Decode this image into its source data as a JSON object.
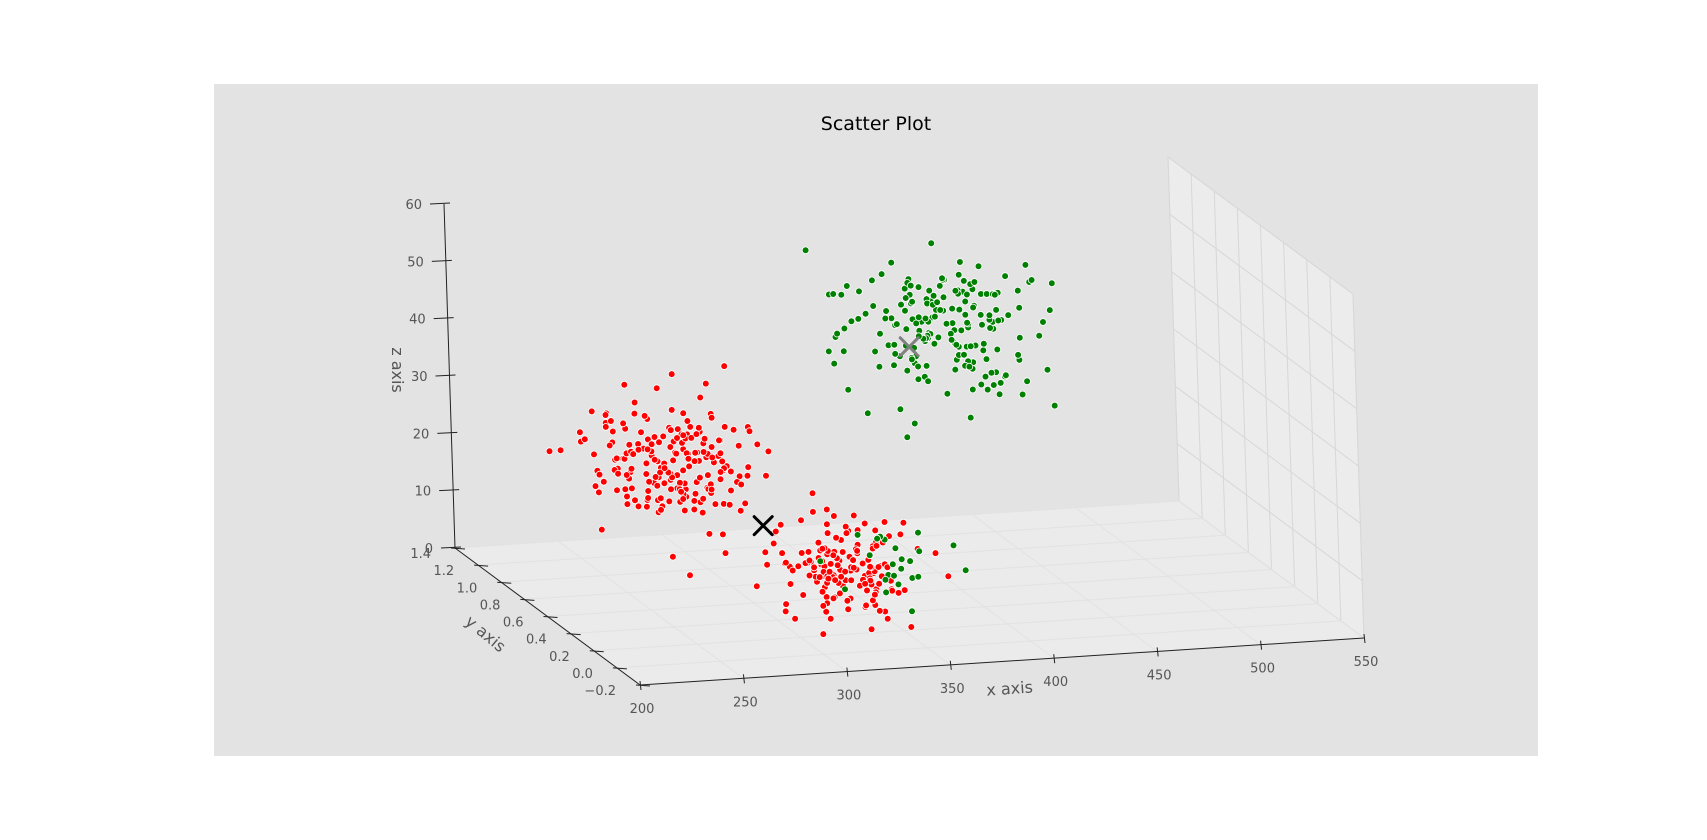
{
  "chart_data": {
    "type": "scatter",
    "projection": "3d",
    "title": "Scatter Plot",
    "xlabel": "x axis",
    "ylabel": "y axis",
    "zlabel": "z axis",
    "xlim": [
      200,
      550
    ],
    "ylim": [
      -0.2,
      1.4
    ],
    "zlim": [
      0,
      60
    ],
    "x_ticks": [
      "200",
      "250",
      "300",
      "350",
      "400",
      "450",
      "500",
      "550"
    ],
    "y_ticks": [
      "−0.2",
      "0.0",
      "0.2",
      "0.4",
      "0.6",
      "0.8",
      "1.0",
      "1.2",
      "1.4"
    ],
    "z_ticks": [
      "0",
      "10",
      "20",
      "30",
      "40",
      "50",
      "60"
    ],
    "grid": true,
    "legend": "none",
    "background": "#e3e3e3",
    "series": [
      {
        "color": "#ff0000",
        "clusters": [
          {
            "x_center": 275,
            "x_spread": 20,
            "y_center": 0.8,
            "y_spread": 0.15,
            "z_center": 22,
            "z_spread": 5,
            "count": 200
          },
          {
            "x_center": 320,
            "x_spread": 16,
            "y_center": 0.25,
            "y_spread": 0.12,
            "z_center": 11,
            "z_spread": 4,
            "count": 160
          }
        ],
        "centroid": {
          "x": 300,
          "y": 0.5,
          "z": 15,
          "marker": "x",
          "color": "#000000"
        }
      },
      {
        "color": "#008000",
        "clusters": [
          {
            "x_center": 410,
            "x_spread": 24,
            "y_center": 0.9,
            "y_spread": 0.2,
            "z_center": 40,
            "z_spread": 6,
            "count": 190
          },
          {
            "x_center": 350,
            "x_spread": 12,
            "y_center": 0.3,
            "y_spread": 0.1,
            "z_center": 10,
            "z_spread": 4,
            "count": 25
          }
        ],
        "centroid": {
          "x": 395,
          "y": 0.9,
          "z": 38,
          "marker": "x",
          "color": "#808080"
        }
      }
    ]
  }
}
